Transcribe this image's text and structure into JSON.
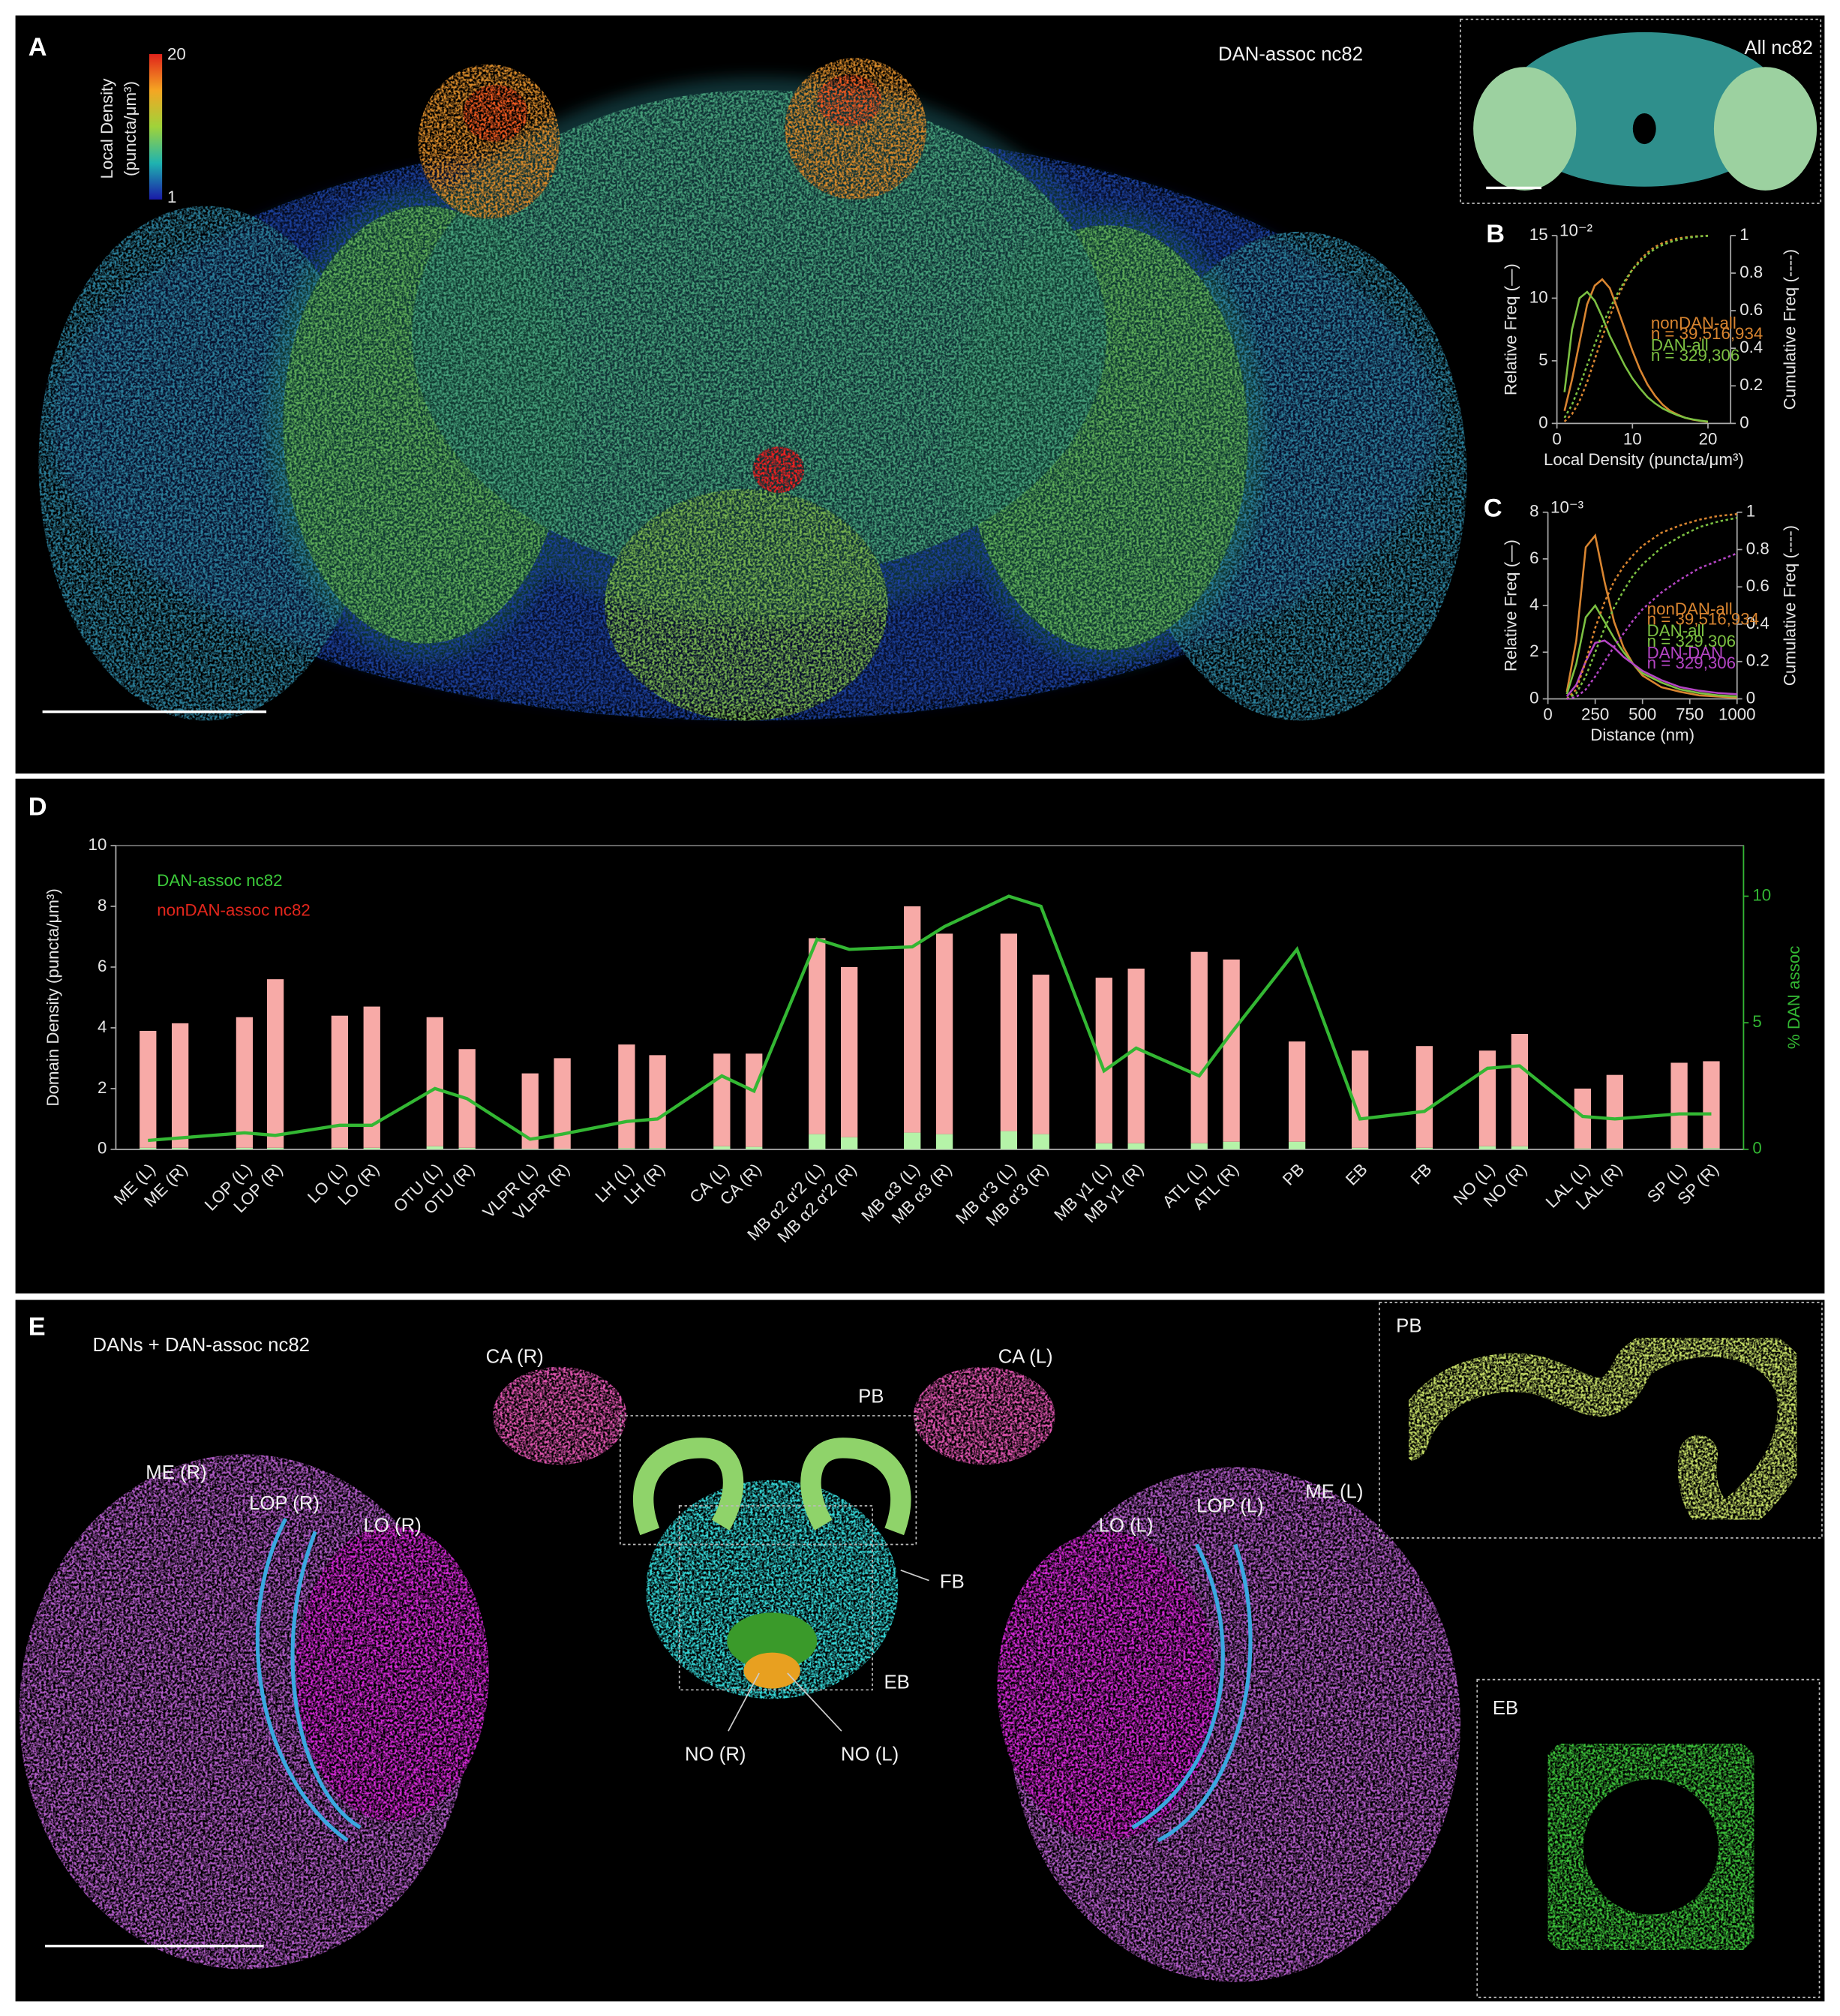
{
  "panels": {
    "A": {
      "letter": "A",
      "colorbar": {
        "label": [
          "Local Density",
          "(puncta/μm³)"
        ],
        "max": 20,
        "min": 1
      },
      "title": "DAN-assoc nc82",
      "inset_title": "All nc82"
    },
    "B": {
      "letter": "B"
    },
    "C": {
      "letter": "C"
    },
    "D": {
      "letter": "D"
    },
    "E": {
      "letter": "E",
      "title": "DANs + DAN-assoc nc82",
      "labels": [
        "CA (R)",
        "CA (L)",
        "PB",
        "ME (R)",
        "LOP (R)",
        "LO (R)",
        "FB",
        "EB",
        "NO (R)",
        "NO (L)",
        "LO (L)",
        "LOP (L)",
        "ME (L)"
      ],
      "inset_labels": [
        "PB",
        "EB"
      ]
    }
  },
  "chart_data": [
    {
      "type": "bar",
      "ylabel": "Domain Density (puncta/μm³)",
      "y2label": "% DAN assoc",
      "categories": [
        "ME (L)",
        "ME (R)",
        "LOP (L)",
        "LOP (R)",
        "LO (L)",
        "LO (R)",
        "OTU (L)",
        "OTU (R)",
        "VLPR (L)",
        "VLPR (R)",
        "LH (L)",
        "LH (R)",
        "CA (L)",
        "CA (R)",
        "MB α2 α'2 (L)",
        "MB α2 α'2 (R)",
        "MB α3 (L)",
        "MB α3 (R)",
        "MB α'3 (L)",
        "MB α'3 (R)",
        "MB γ1 (L)",
        "MB γ1 (R)",
        "ATL (L)",
        "ATL (R)",
        "PB",
        "EB",
        "FB",
        "NO (L)",
        "NO (R)",
        "LAL (L)",
        "LAL (R)",
        "SP (L)",
        "SP (R)"
      ],
      "series": [
        {
          "name": "DAN-assoc nc82",
          "color": "#b5f3a8",
          "text_color": "#3ccb3a",
          "values": [
            0.05,
            0.05,
            0.05,
            0.05,
            0.05,
            0.05,
            0.1,
            0.05,
            0.02,
            0.02,
            0.04,
            0.04,
            0.1,
            0.08,
            0.5,
            0.4,
            0.55,
            0.5,
            0.6,
            0.5,
            0.2,
            0.2,
            0.2,
            0.25,
            0.25,
            0.05,
            0.05,
            0.1,
            0.1,
            0.03,
            0.03,
            0.04,
            0.04
          ]
        },
        {
          "name": "nonDAN-assoc nc82",
          "color": "#f7aaa7",
          "text_color": "#e3261c",
          "values": [
            3.85,
            4.1,
            4.3,
            5.55,
            4.35,
            4.65,
            4.25,
            3.25,
            2.48,
            2.98,
            3.41,
            3.06,
            3.05,
            3.07,
            6.45,
            5.6,
            7.45,
            6.6,
            6.5,
            5.25,
            5.45,
            5.75,
            6.3,
            6.0,
            3.3,
            3.2,
            3.35,
            3.15,
            3.7,
            1.97,
            2.42,
            2.81,
            2.86
          ]
        },
        {
          "type": "line",
          "axis": "y2",
          "color": "#33b733",
          "values": [
            0.35,
            0.45,
            0.65,
            0.55,
            0.95,
            0.95,
            2.4,
            2.0,
            0.4,
            0.6,
            1.1,
            1.2,
            2.9,
            2.3,
            8.3,
            7.9,
            8.0,
            8.8,
            10.0,
            9.6,
            3.1,
            4.0,
            2.9,
            4.6,
            7.9,
            1.2,
            1.5,
            3.2,
            3.3,
            1.3,
            1.2,
            1.4,
            1.4
          ]
        }
      ],
      "ylim": [
        0,
        10
      ],
      "yticks": [
        0,
        2,
        4,
        6,
        8,
        10
      ],
      "y2lim": [
        0,
        12
      ],
      "y2ticks": [
        0,
        5,
        10
      ],
      "y2color": "#33b733"
    },
    {
      "type": "line",
      "ylabel": "Relative Freq (—)",
      "y2label": "Cumulative Freq (----)",
      "xlabel": "Local Density (puncta/μm³)",
      "exponent_label": "10⁻²",
      "x": [
        1,
        2,
        3,
        4,
        5,
        6,
        7,
        8,
        9,
        10,
        11,
        12,
        13,
        14,
        15,
        16,
        17,
        18,
        19,
        20
      ],
      "series": [
        {
          "name": "nonDAN-all",
          "n_label": "n = 39,516,934",
          "color": "#d98530",
          "values": [
            1.0,
            3.5,
            6.5,
            9.5,
            11.0,
            11.5,
            10.8,
            9.2,
            7.5,
            5.8,
            4.3,
            3.1,
            2.2,
            1.5,
            1.0,
            0.7,
            0.45,
            0.3,
            0.2,
            0.12
          ]
        },
        {
          "name": "DAN-all",
          "n_label": "n = 329,306",
          "color": "#7cc142",
          "values": [
            2.5,
            7.5,
            10.0,
            10.5,
            9.8,
            8.5,
            7.0,
            5.8,
            4.6,
            3.6,
            2.8,
            2.1,
            1.6,
            1.2,
            0.9,
            0.65,
            0.45,
            0.32,
            0.22,
            0.15
          ]
        },
        {
          "axis": "y2",
          "dashed": true,
          "color": "#d98530",
          "values": [
            0.01,
            0.05,
            0.12,
            0.22,
            0.34,
            0.46,
            0.57,
            0.67,
            0.75,
            0.82,
            0.87,
            0.91,
            0.94,
            0.96,
            0.975,
            0.985,
            0.99,
            0.995,
            0.997,
            0.999
          ]
        },
        {
          "axis": "y2",
          "dashed": true,
          "color": "#7cc142",
          "values": [
            0.03,
            0.1,
            0.2,
            0.31,
            0.42,
            0.52,
            0.61,
            0.69,
            0.76,
            0.82,
            0.86,
            0.9,
            0.93,
            0.95,
            0.965,
            0.977,
            0.986,
            0.992,
            0.996,
            0.998
          ]
        }
      ],
      "xlim": [
        0,
        23
      ],
      "xticks": [
        0,
        10,
        20
      ],
      "ylim": [
        0,
        15
      ],
      "yticks": [
        0,
        5,
        10,
        15
      ],
      "y2lim": [
        0,
        1
      ],
      "y2ticks": [
        0,
        0.2,
        0.4,
        0.6,
        0.8,
        1
      ]
    },
    {
      "type": "line",
      "ylabel": "Relative Freq (—)",
      "y2label": "Cumulative Freq (----)",
      "xlabel": "Distance (nm)",
      "exponent_label": "10⁻³",
      "x": [
        100,
        150,
        200,
        250,
        300,
        350,
        400,
        450,
        500,
        600,
        700,
        800,
        900,
        1000
      ],
      "series": [
        {
          "name": "nonDAN-all",
          "n_label": "n = 39,516,934",
          "color": "#d98530",
          "values": [
            0.3,
            2.5,
            6.5,
            7.0,
            5.0,
            3.3,
            2.2,
            1.5,
            1.0,
            0.5,
            0.3,
            0.15,
            0.1,
            0.05
          ]
        },
        {
          "name": "DAN-all",
          "n_label": "n = 329,306",
          "color": "#7cc142",
          "values": [
            0.2,
            1.5,
            3.5,
            4.0,
            3.3,
            2.6,
            2.0,
            1.5,
            1.1,
            0.7,
            0.4,
            0.25,
            0.15,
            0.1
          ]
        },
        {
          "name": "DAN-DAN",
          "n_label": "n = 329,306",
          "color": "#b445c4",
          "values": [
            0.1,
            0.6,
            1.6,
            2.4,
            2.5,
            2.2,
            1.8,
            1.5,
            1.2,
            0.8,
            0.5,
            0.35,
            0.25,
            0.2
          ]
        },
        {
          "axis": "y2",
          "dashed": true,
          "color": "#d98530",
          "values": [
            0.0,
            0.05,
            0.2,
            0.38,
            0.52,
            0.63,
            0.71,
            0.77,
            0.82,
            0.89,
            0.93,
            0.96,
            0.98,
            0.99
          ]
        },
        {
          "axis": "y2",
          "dashed": true,
          "color": "#7cc142",
          "values": [
            0.0,
            0.03,
            0.12,
            0.25,
            0.38,
            0.49,
            0.58,
            0.66,
            0.72,
            0.81,
            0.87,
            0.92,
            0.95,
            0.97
          ]
        },
        {
          "axis": "y2",
          "dashed": true,
          "color": "#b445c4",
          "values": [
            0,
            0.01,
            0.05,
            0.12,
            0.2,
            0.28,
            0.35,
            0.42,
            0.48,
            0.57,
            0.64,
            0.7,
            0.74,
            0.78
          ]
        }
      ],
      "xlim": [
        0,
        1000
      ],
      "xticks": [
        0,
        250,
        500,
        750,
        1000
      ],
      "ylim": [
        0,
        8
      ],
      "yticks": [
        0,
        2,
        4,
        6,
        8
      ],
      "y2lim": [
        0,
        1
      ],
      "y2ticks": [
        0,
        0.2,
        0.4,
        0.6,
        0.8,
        1
      ]
    }
  ]
}
